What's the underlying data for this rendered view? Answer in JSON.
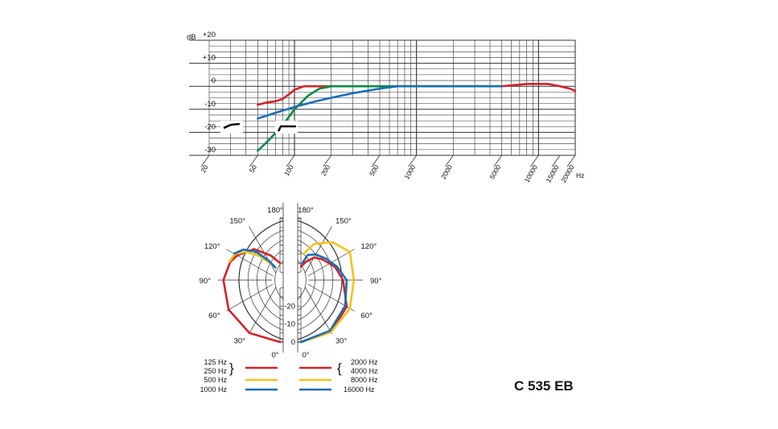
{
  "model": "C 535 EB",
  "chart_data": [
    {
      "type": "line",
      "ylabel": "dB",
      "xlabel": "Hz",
      "x_scale": "log",
      "xlim": [
        20,
        20000
      ],
      "ylim": [
        -30,
        20
      ],
      "grid": true,
      "ytick_labels": [
        "+20",
        "+10",
        "0",
        "-10",
        "-20",
        "-30"
      ],
      "xtick_labels": [
        "20",
        "50",
        "100",
        "200",
        "500",
        "1000",
        "2000",
        "5000",
        "10000",
        "15000",
        "20000"
      ],
      "series": [
        {
          "color": "#d2232a",
          "x": [
            50,
            60,
            70,
            80,
            90,
            100,
            120,
            150,
            200,
            500,
            1000,
            2000,
            5000,
            8000,
            10000,
            12000,
            15000,
            18000,
            20000
          ],
          "y": [
            -8,
            -7,
            -6.5,
            -5.5,
            -3.5,
            -1.5,
            0,
            0,
            0,
            0,
            0,
            0,
            0,
            1,
            1,
            1,
            0,
            -1,
            -2
          ]
        },
        {
          "color": "#0a8a4a",
          "x": [
            50,
            60,
            80,
            100,
            130,
            160,
            200,
            500,
            1000,
            5000
          ],
          "y": [
            -28,
            -24,
            -17,
            -10,
            -4,
            -1,
            0,
            0,
            0,
            0
          ]
        },
        {
          "color": "#1a6fb4",
          "x": [
            50,
            70,
            100,
            150,
            200,
            300,
            500,
            700,
            1000,
            5000
          ],
          "y": [
            -14,
            -11.5,
            -9,
            -6.5,
            -5,
            -3,
            -1,
            0,
            0,
            0
          ]
        }
      ],
      "filter_icons": [
        "low-cut-1",
        "low-cut-2"
      ]
    },
    {
      "type": "polar",
      "rlim": [
        -30,
        0
      ],
      "r_tick_labels": [
        "-20",
        "-10",
        "0"
      ],
      "angle_labels_left": [
        "180°",
        "150°",
        "120°",
        "90°",
        "60°",
        "30°",
        "0°"
      ],
      "angle_labels_right": [
        "180°",
        "150°",
        "120°",
        "90°",
        "60°",
        "30°",
        "0°"
      ],
      "left_half": [
        {
          "name": "125 Hz / 250 Hz",
          "color": "#d2232a",
          "angles": [
            0,
            30,
            60,
            90,
            110,
            120,
            140,
            160,
            180
          ],
          "values": [
            0,
            -0.5,
            -1.5,
            -3,
            -5,
            -7,
            -12,
            -20,
            -25
          ]
        },
        {
          "name": "500 Hz",
          "color": "#f2c21a",
          "angles": [
            110,
            120,
            130,
            140,
            150,
            160
          ],
          "values": [
            -4.5,
            -5.5,
            -10,
            -17,
            -24,
            -27
          ]
        },
        {
          "name": "1000 Hz",
          "color": "#1a6fb4",
          "angles": [
            120,
            130,
            140,
            150,
            160
          ],
          "values": [
            -5,
            -8,
            -14,
            -22,
            -27
          ]
        }
      ],
      "right_half": [
        {
          "name": "2000 Hz / 4000 Hz",
          "color": "#d2232a",
          "angles": [
            0,
            30,
            60,
            90,
            110,
            120,
            135,
            150,
            165,
            180
          ],
          "values": [
            0,
            -1,
            -5,
            -11,
            -14,
            -16,
            -18,
            -20,
            -24,
            -27
          ]
        },
        {
          "name": "8000 Hz",
          "color": "#f2c21a",
          "angles": [
            0,
            30,
            60,
            90,
            120,
            140,
            160,
            175
          ],
          "values": [
            0,
            -1,
            -3,
            -5,
            -3,
            -7,
            -13,
            -20
          ]
        },
        {
          "name": "16000 Hz",
          "color": "#1a6fb4",
          "angles": [
            0,
            30,
            60,
            90,
            110,
            130,
            150,
            165,
            175
          ],
          "values": [
            0,
            -2,
            -6,
            -9,
            -13,
            -16,
            -18,
            -20,
            -25
          ]
        }
      ],
      "legend": {
        "left": [
          "125 Hz",
          "250 Hz",
          "500 Hz",
          "1000 Hz"
        ],
        "right": [
          "2000 Hz",
          "4000 Hz",
          "8000 Hz",
          "16000 Hz"
        ],
        "colors": [
          "#d2232a",
          "#f2c21a",
          "#1a6fb4"
        ]
      }
    }
  ]
}
